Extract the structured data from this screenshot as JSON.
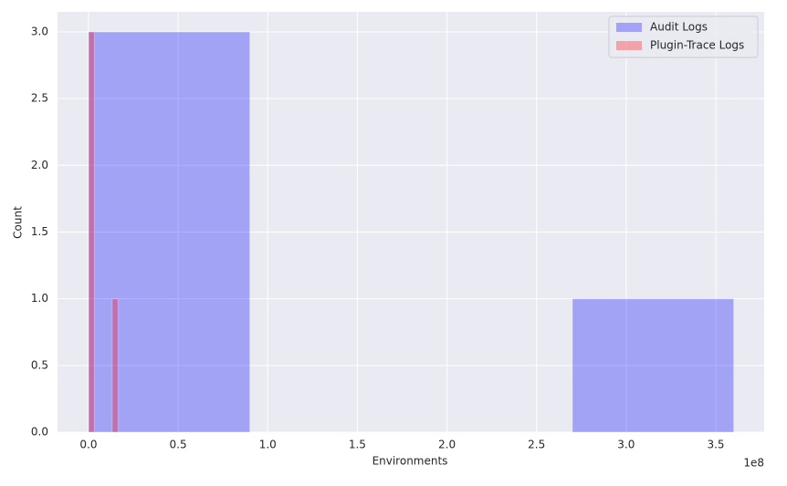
{
  "chart_data": {
    "type": "histogram",
    "xlabel": "Environments",
    "ylabel": "Count",
    "x_offset_label": "1e8",
    "series": [
      {
        "name": "Audit Logs",
        "color": "#0000ff",
        "bins": [
          0,
          90000000,
          180000000,
          270000000,
          360000000
        ],
        "values": [
          3,
          0,
          0,
          1
        ]
      },
      {
        "name": "Plugin-Trace Logs",
        "color": "#ff0000",
        "bins": [
          0,
          3300000,
          6600000,
          9900000,
          13200000,
          16500000
        ],
        "values": [
          3,
          0,
          0,
          0,
          1
        ]
      }
    ],
    "xlim": [
      -17300000,
      377000000
    ],
    "xticks": [
      {
        "value": 0,
        "label": "0.0"
      },
      {
        "value": 50000000,
        "label": "0.5"
      },
      {
        "value": 100000000,
        "label": "1.0"
      },
      {
        "value": 150000000,
        "label": "1.5"
      },
      {
        "value": 200000000,
        "label": "2.0"
      },
      {
        "value": 250000000,
        "label": "2.5"
      },
      {
        "value": 300000000,
        "label": "3.0"
      },
      {
        "value": 350000000,
        "label": "3.5"
      }
    ],
    "ylim": [
      0,
      3.15
    ],
    "yticks": [
      {
        "value": 0,
        "label": "0.0"
      },
      {
        "value": 0.5,
        "label": "0.5"
      },
      {
        "value": 1,
        "label": "1.0"
      },
      {
        "value": 1.5,
        "label": "1.5"
      },
      {
        "value": 2,
        "label": "2.0"
      },
      {
        "value": 2.5,
        "label": "2.5"
      },
      {
        "value": 3,
        "label": "3.0"
      }
    ],
    "grid": true,
    "legend": "upper right",
    "alpha": 0.3
  }
}
